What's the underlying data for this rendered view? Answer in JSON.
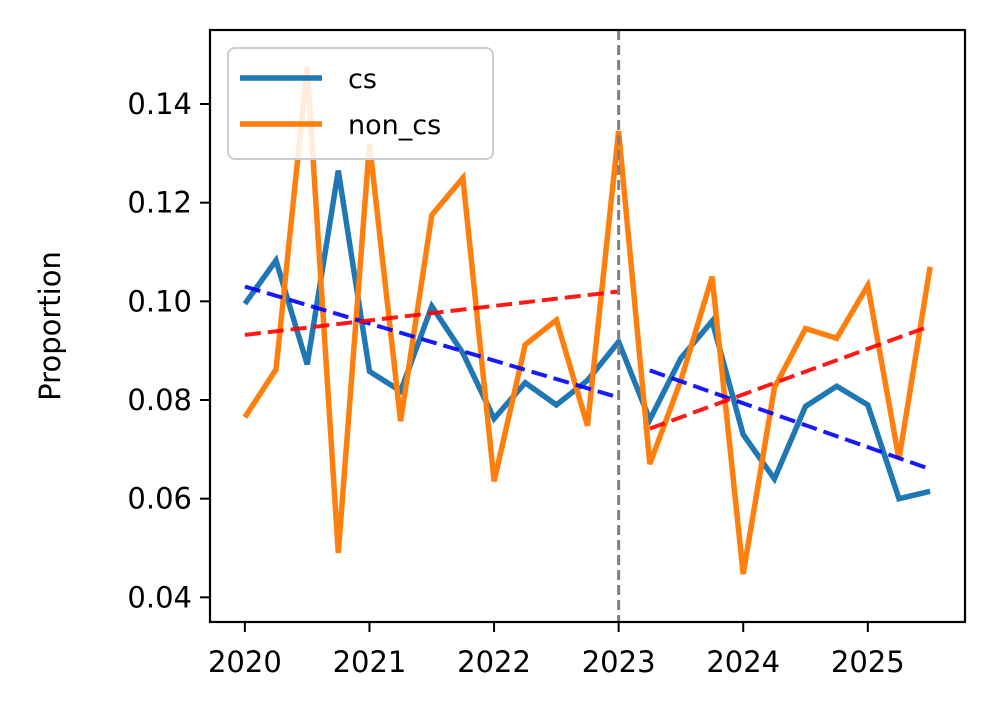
{
  "chart_data": {
    "type": "line",
    "title": "",
    "xlabel": "",
    "ylabel": "Proportion",
    "xlim": [
      2019.72,
      2025.78
    ],
    "ylim": [
      0.035,
      0.155
    ],
    "xticks": [
      "2020",
      "2021",
      "2022",
      "2023",
      "2024",
      "2025"
    ],
    "yticks": [
      "0.04",
      "0.06",
      "0.08",
      "0.10",
      "0.12",
      "0.14"
    ],
    "legend_position": "top-left",
    "grid": false,
    "vline": {
      "x": 2023.0,
      "style": "dashed",
      "color": "#808080"
    },
    "x": [
      2020.0,
      2020.25,
      2020.5,
      2020.75,
      2021.0,
      2021.25,
      2021.5,
      2021.75,
      2022.0,
      2022.25,
      2022.5,
      2022.75,
      2023.0,
      2023.25,
      2023.5,
      2023.75,
      2024.0,
      2024.25,
      2024.5,
      2024.75,
      2025.0,
      2025.25,
      2025.5
    ],
    "series": [
      {
        "name": "cs",
        "color": "#1f77b4",
        "values": [
          0.0995,
          0.1083,
          0.0872,
          0.1265,
          0.0858,
          0.0818,
          0.099,
          0.0895,
          0.0762,
          0.0835,
          0.079,
          0.084,
          0.0918,
          0.076,
          0.0885,
          0.096,
          0.073,
          0.064,
          0.0787,
          0.0828,
          0.079,
          0.06,
          0.0615
        ]
      },
      {
        "name": "non_cs",
        "color": "#ff7f0e",
        "values": [
          0.0765,
          0.0862,
          0.1475,
          0.049,
          0.132,
          0.0757,
          0.1175,
          0.125,
          0.0635,
          0.0912,
          0.0962,
          0.0748,
          0.1345,
          0.067,
          0.084,
          0.105,
          0.0447,
          0.0825,
          0.0945,
          0.0925,
          0.1032,
          0.068,
          0.107
        ]
      }
    ],
    "trend_lines": [
      {
        "color": "#0000ff",
        "x": [
          2020.0,
          2023.0
        ],
        "y": [
          0.103,
          0.0805
        ]
      },
      {
        "color": "#0000ff",
        "x": [
          2023.25,
          2025.5
        ],
        "y": [
          0.086,
          0.066
        ]
      },
      {
        "color": "#ff0000",
        "x": [
          2020.0,
          2023.0
        ],
        "y": [
          0.0932,
          0.102
        ]
      },
      {
        "color": "#ff0000",
        "x": [
          2023.25,
          2025.5
        ],
        "y": [
          0.0742,
          0.095
        ]
      }
    ]
  }
}
